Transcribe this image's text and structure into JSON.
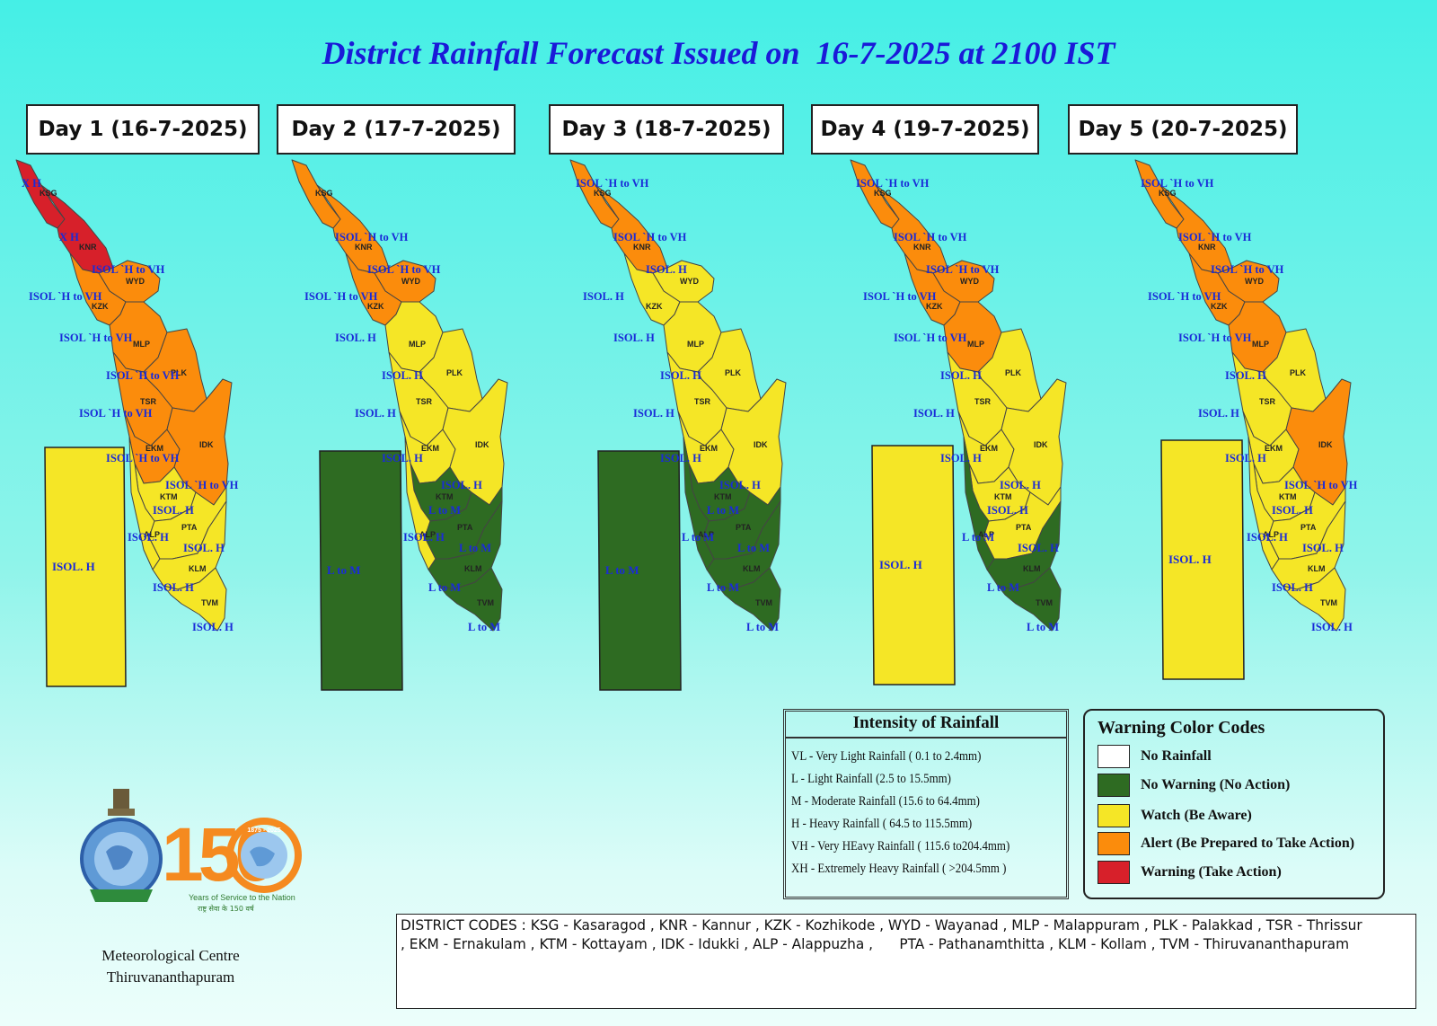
{
  "title": "District Rainfall Forecast Issued on  16-7-2025 at 2100 IST",
  "colors": {
    "no_rainfall": "#ffffff",
    "no_warning": "#2e6b22",
    "watch": "#f5e626",
    "alert": "#fb8c0c",
    "warning": "#d7202a"
  },
  "days": [
    {
      "label": "Day 1 (16-7-2025)",
      "rect_label": "ISOL. H",
      "rect_color": "watch",
      "districts": [
        {
          "code": "KSG",
          "color": "warning",
          "warning": "X H"
        },
        {
          "code": "KNR",
          "color": "warning",
          "warning": "X H"
        },
        {
          "code": "WYD",
          "color": "alert",
          "warning": "ISOL `H to VH"
        },
        {
          "code": "KZK",
          "color": "alert",
          "warning": "ISOL `H to VH"
        },
        {
          "code": "MLP",
          "color": "alert",
          "warning": "ISOL `H to VH"
        },
        {
          "code": "PLK",
          "color": "alert",
          "warning": "ISOL `H to VH"
        },
        {
          "code": "TSR",
          "color": "alert",
          "warning": "ISOL `H to VH"
        },
        {
          "code": "EKM",
          "color": "alert",
          "warning": "ISOL `H to VH"
        },
        {
          "code": "IDK",
          "color": "alert",
          "warning": "ISOL `H to VH"
        },
        {
          "code": "KTM",
          "color": "watch",
          "warning": "ISOL. H"
        },
        {
          "code": "ALP",
          "color": "watch",
          "warning": "ISOL. H"
        },
        {
          "code": "PTA",
          "color": "watch",
          "warning": "ISOL. H"
        },
        {
          "code": "KLM",
          "color": "watch",
          "warning": "ISOL. H"
        },
        {
          "code": "TVM",
          "color": "watch",
          "warning": "ISOL. H"
        }
      ]
    },
    {
      "label": "Day 2 (17-7-2025)",
      "rect_label": "L to M",
      "rect_color": "no_warning",
      "districts": [
        {
          "code": "KSG",
          "color": "alert",
          "warning": ""
        },
        {
          "code": "KNR",
          "color": "alert",
          "warning": "ISOL `H to VH"
        },
        {
          "code": "WYD",
          "color": "alert",
          "warning": "ISOL `H to VH"
        },
        {
          "code": "KZK",
          "color": "alert",
          "warning": "ISOL `H to VH"
        },
        {
          "code": "MLP",
          "color": "watch",
          "warning": "ISOL. H"
        },
        {
          "code": "PLK",
          "color": "watch",
          "warning": "ISOL. H"
        },
        {
          "code": "TSR",
          "color": "watch",
          "warning": "ISOL. H"
        },
        {
          "code": "EKM",
          "color": "watch",
          "warning": "ISOL. H"
        },
        {
          "code": "IDK",
          "color": "watch",
          "warning": "ISOL. H"
        },
        {
          "code": "KTM",
          "color": "no_warning",
          "warning": "L to M"
        },
        {
          "code": "ALP",
          "color": "watch",
          "warning": "ISOL. H"
        },
        {
          "code": "PTA",
          "color": "no_warning",
          "warning": "L to M"
        },
        {
          "code": "KLM",
          "color": "no_warning",
          "warning": "L to M"
        },
        {
          "code": "TVM",
          "color": "no_warning",
          "warning": "L to M"
        }
      ]
    },
    {
      "label": "Day 3 (18-7-2025)",
      "rect_label": "L to M",
      "rect_color": "no_warning",
      "districts": [
        {
          "code": "KSG",
          "color": "alert",
          "warning": "ISOL `H to VH"
        },
        {
          "code": "KNR",
          "color": "alert",
          "warning": "ISOL `H to VH"
        },
        {
          "code": "WYD",
          "color": "watch",
          "warning": "ISOL. H"
        },
        {
          "code": "KZK",
          "color": "watch",
          "warning": "ISOL. H"
        },
        {
          "code": "MLP",
          "color": "watch",
          "warning": "ISOL. H"
        },
        {
          "code": "PLK",
          "color": "watch",
          "warning": "ISOL. H"
        },
        {
          "code": "TSR",
          "color": "watch",
          "warning": "ISOL. H"
        },
        {
          "code": "EKM",
          "color": "watch",
          "warning": "ISOL. H"
        },
        {
          "code": "IDK",
          "color": "watch",
          "warning": "ISOL. H"
        },
        {
          "code": "KTM",
          "color": "no_warning",
          "warning": "L to M"
        },
        {
          "code": "ALP",
          "color": "no_warning",
          "warning": "L to M"
        },
        {
          "code": "PTA",
          "color": "no_warning",
          "warning": "L to M"
        },
        {
          "code": "KLM",
          "color": "no_warning",
          "warning": "L to M"
        },
        {
          "code": "TVM",
          "color": "no_warning",
          "warning": "L to M"
        }
      ]
    },
    {
      "label": "Day 4 (19-7-2025)",
      "rect_label": "ISOL. H",
      "rect_color": "watch",
      "districts": [
        {
          "code": "KSG",
          "color": "alert",
          "warning": "ISOL `H to VH"
        },
        {
          "code": "KNR",
          "color": "alert",
          "warning": "ISOL `H to VH"
        },
        {
          "code": "WYD",
          "color": "alert",
          "warning": "ISOL `H to VH"
        },
        {
          "code": "KZK",
          "color": "alert",
          "warning": "ISOL `H to VH"
        },
        {
          "code": "MLP",
          "color": "alert",
          "warning": "ISOL `H to VH"
        },
        {
          "code": "PLK",
          "color": "watch",
          "warning": "ISOL. H"
        },
        {
          "code": "TSR",
          "color": "watch",
          "warning": "ISOL. H"
        },
        {
          "code": "EKM",
          "color": "watch",
          "warning": "ISOL. H"
        },
        {
          "code": "IDK",
          "color": "watch",
          "warning": "ISOL. H"
        },
        {
          "code": "KTM",
          "color": "watch",
          "warning": "ISOL. H"
        },
        {
          "code": "ALP",
          "color": "no_warning",
          "warning": "L to M"
        },
        {
          "code": "PTA",
          "color": "watch",
          "warning": "ISOL. H"
        },
        {
          "code": "KLM",
          "color": "no_warning",
          "warning": "L to M"
        },
        {
          "code": "TVM",
          "color": "no_warning",
          "warning": "L to M"
        }
      ]
    },
    {
      "label": "Day 5 (20-7-2025)",
      "rect_label": "ISOL. H",
      "rect_color": "watch",
      "districts": [
        {
          "code": "KSG",
          "color": "alert",
          "warning": "ISOL `H to VH"
        },
        {
          "code": "KNR",
          "color": "alert",
          "warning": "ISOL `H to VH"
        },
        {
          "code": "WYD",
          "color": "alert",
          "warning": "ISOL `H to VH"
        },
        {
          "code": "KZK",
          "color": "alert",
          "warning": "ISOL `H to VH"
        },
        {
          "code": "MLP",
          "color": "alert",
          "warning": "ISOL `H to VH"
        },
        {
          "code": "PLK",
          "color": "watch",
          "warning": "ISOL. H"
        },
        {
          "code": "TSR",
          "color": "watch",
          "warning": "ISOL. H"
        },
        {
          "code": "EKM",
          "color": "watch",
          "warning": "ISOL. H"
        },
        {
          "code": "IDK",
          "color": "alert",
          "warning": "ISOL `H to VH"
        },
        {
          "code": "KTM",
          "color": "watch",
          "warning": "ISOL. H"
        },
        {
          "code": "ALP",
          "color": "watch",
          "warning": "ISOL. H"
        },
        {
          "code": "PTA",
          "color": "watch",
          "warning": "ISOL. H"
        },
        {
          "code": "KLM",
          "color": "watch",
          "warning": "ISOL. H"
        },
        {
          "code": "TVM",
          "color": "watch",
          "warning": "ISOL. H"
        }
      ]
    }
  ],
  "intensity": {
    "title": "Intensity of Rainfall",
    "rows": [
      "VL - Very Light Rainfall ( 0.1 to 2.4mm)",
      "L  - Light Rainfall (2.5 to 15.5mm)",
      "M  - Moderate Rainfall (15.6 to 64.4mm)",
      "H - Heavy Rainfall ( 64.5 to 115.5mm)",
      "VH - Very HEavy Rainfall ( 115.6 to204.4mm)",
      "XH - Extremely Heavy Rainfall ( >204.5mm )"
    ]
  },
  "color_codes": {
    "title": "Warning Color Codes",
    "items": [
      {
        "label": "No Rainfall",
        "color": "#ffffff"
      },
      {
        "label": "No Warning (No Action)",
        "color": "#2e6b22"
      },
      {
        "label": "Watch (Be Aware)",
        "color": "#f5e626"
      },
      {
        "label": "Alert (Be Prepared to Take Action)",
        "color": "#fb8c0c"
      },
      {
        "label": "Warning (Take Action)",
        "color": "#d7202a"
      }
    ]
  },
  "district_codes": {
    "line1": "DISTRICT CODES : KSG - Kasaragod , KNR - Kannur , KZK - Kozhikode , WYD - Wayanad , MLP - Malappuram , PLK - Palakkad , TSR - Thrissur",
    "line2": ", EKM - Ernakulam , KTM - Kottayam , IDK - Idukki , ALP - Alappuzha ,      PTA - Pathanamthitta , KLM - Kollam , TVM - Thiruvananthapuram"
  },
  "logo": {
    "number": "150",
    "years_text": "Years of Service to the Nation",
    "hindi_text": "राष्ट्र सेवा के 150 वर्ष",
    "arc_text": "1875 - 2025"
  },
  "organization": {
    "line1": "Meteorological Centre",
    "line2": "Thiruvananthapuram"
  }
}
